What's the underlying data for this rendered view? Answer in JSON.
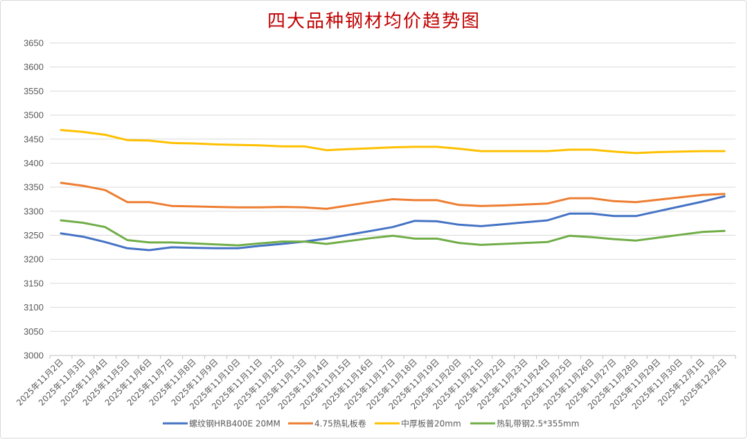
{
  "chart_data": {
    "type": "line",
    "title": "四大品种钢材均价趋势图",
    "xlabel": "",
    "ylabel": "",
    "ylim": [
      3000,
      3650
    ],
    "yticks": [
      3000,
      3050,
      3100,
      3150,
      3200,
      3250,
      3300,
      3350,
      3400,
      3450,
      3500,
      3550,
      3600,
      3650
    ],
    "grid": true,
    "legend_position": "bottom",
    "categories": [
      "2025年11月2日",
      "2025年11月3日",
      "2025年11月4日",
      "2025年11月5日",
      "2025年11月6日",
      "2025年11月7日",
      "2025年11月8日",
      "2025年11月9日",
      "2025年11月10日",
      "2025年11月11日",
      "2025年11月12日",
      "2025年11月13日",
      "2025年11月14日",
      "2025年11月15日",
      "2025年11月16日",
      "2025年11月17日",
      "2025年11月18日",
      "2025年11月19日",
      "2025年11月20日",
      "2025年11月21日",
      "2025年11月22日",
      "2025年11月23日",
      "2025年11月24日",
      "2025年11月25日",
      "2025年11月26日",
      "2025年11月27日",
      "2025年11月28日",
      "2025年11月29日",
      "2025年11月30日",
      "2025年12月1日",
      "2025年12月2日"
    ],
    "series": [
      {
        "name": "螺纹钢HRB400E 20MM",
        "color": "#4472c4",
        "values": [
          3254,
          3247,
          3236,
          3223,
          3219,
          3225,
          3224,
          3223,
          3223,
          3228,
          3232,
          3237,
          3243,
          3251,
          3259,
          3267,
          3280,
          3279,
          3272,
          3269,
          3273,
          3277,
          3281,
          3295,
          3295,
          3290,
          3290,
          3300,
          3310,
          3320,
          3331
        ]
      },
      {
        "name": "4.75热轧板卷",
        "color": "#ed7d31",
        "values": [
          3359,
          3353,
          3344,
          3319,
          3319,
          3311,
          3310,
          3309,
          3308,
          3308,
          3309,
          3308,
          3305,
          3312,
          3319,
          3325,
          3323,
          3323,
          3313,
          3311,
          3312,
          3314,
          3316,
          3327,
          3327,
          3321,
          3319,
          3324,
          3329,
          3334,
          3336
        ]
      },
      {
        "name": "中厚板普20mm",
        "color": "#ffc000",
        "values": [
          3469,
          3465,
          3459,
          3448,
          3447,
          3442,
          3441,
          3439,
          3438,
          3437,
          3435,
          3435,
          3427,
          3429,
          3431,
          3433,
          3434,
          3434,
          3430,
          3425,
          3425,
          3425,
          3425,
          3428,
          3428,
          3424,
          3421,
          3423,
          3424,
          3425,
          3425
        ]
      },
      {
        "name": "热轧带钢2.5*355mm",
        "color": "#70ad47",
        "values": [
          3281,
          3276,
          3267,
          3240,
          3235,
          3235,
          3233,
          3231,
          3229,
          3233,
          3237,
          3237,
          3232,
          3238,
          3244,
          3249,
          3243,
          3243,
          3234,
          3230,
          3232,
          3234,
          3236,
          3249,
          3246,
          3242,
          3239,
          3245,
          3251,
          3257,
          3259
        ]
      }
    ]
  }
}
